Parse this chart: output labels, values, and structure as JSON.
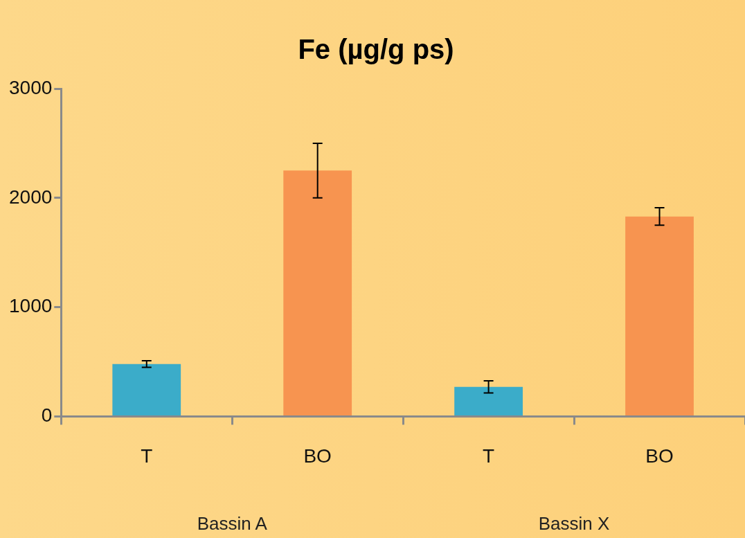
{
  "chart_data": {
    "type": "bar",
    "title": "Fe (µg/g ps)",
    "categories": [
      "T",
      "BO",
      "T",
      "BO"
    ],
    "values": [
      480,
      2250,
      270,
      1830
    ],
    "colors": [
      "#3bacc9",
      "#f79450",
      "#3bacc9",
      "#f79450"
    ],
    "errors": [
      30,
      250,
      55,
      80
    ],
    "ylim": [
      0,
      3000
    ],
    "yticks": [
      0,
      1000,
      2000,
      3000
    ],
    "grid": false,
    "legend": false,
    "annotations": [
      "Bassin A",
      "Bassin X"
    ]
  }
}
